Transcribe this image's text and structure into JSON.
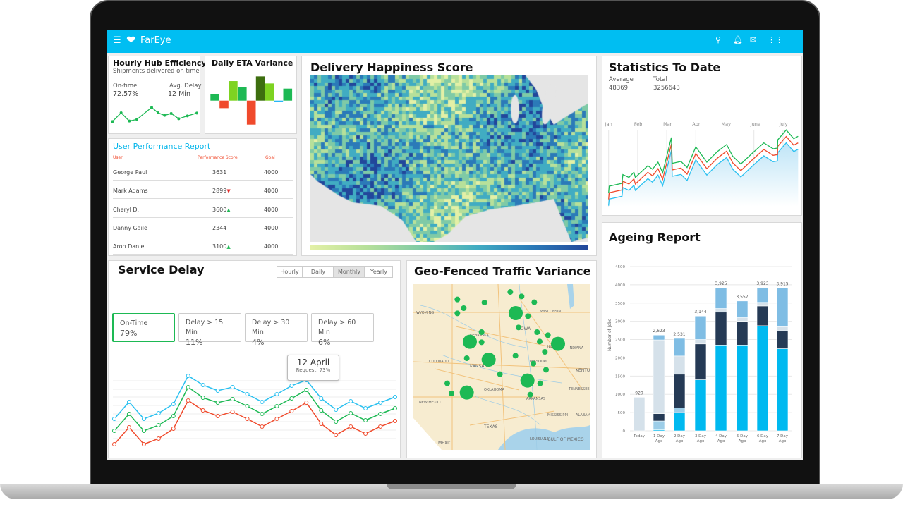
{
  "app": {
    "brand": "FarEye",
    "icons": [
      "menu-icon",
      "search-icon",
      "bell-icon",
      "mail-icon",
      "apps-grid-icon"
    ],
    "accent": "#00bef2"
  },
  "hub": {
    "title": "Hourly Hub Efficiency",
    "subtitle": "Shipments delivered on time",
    "ontime_label": "On-time",
    "ontime_value": "72.57%",
    "delay_label": "Avg. Delay",
    "delay_value": "12 Min",
    "series": [
      8,
      45,
      10,
      17,
      68,
      45,
      34,
      42,
      20,
      32,
      44
    ],
    "color": "#1db954"
  },
  "eta": {
    "title": "Daily ETA Variance",
    "bars": [
      {
        "v": 29,
        "c": "#1db954"
      },
      {
        "v": -32,
        "c": "#f04a2c"
      },
      {
        "v": 83,
        "c": "#7ed321"
      },
      {
        "v": 58,
        "c": "#1db954"
      },
      {
        "v": -102,
        "c": "#f04a2c"
      },
      {
        "v": 103,
        "c": "#3d6e0f"
      },
      {
        "v": 73,
        "c": "#7ed321"
      },
      {
        "v": -5,
        "c": "#29b6f6"
      },
      {
        "v": 51,
        "c": "#1db954"
      }
    ]
  },
  "users": {
    "title": "User Performance Report",
    "headers": [
      "User",
      "Performance Score",
      "Goal"
    ],
    "rows": [
      {
        "user": "George Paul",
        "score": "3631",
        "trend": "",
        "goal": "4000"
      },
      {
        "user": "Mark Adams",
        "score": "2899",
        "trend": "down",
        "goal": "4000"
      },
      {
        "user": "Cheryl D.",
        "score": "3600",
        "trend": "up",
        "goal": "4000"
      },
      {
        "user": "Danny Gaile",
        "score": "2344",
        "trend": "",
        "goal": "4000"
      },
      {
        "user": "Aron Daniel",
        "score": "3100",
        "trend": "up",
        "goal": "4000"
      }
    ]
  },
  "happiness": {
    "title": "Delivery Happiness Score",
    "palette": [
      "#e3f0a6",
      "#b7e09a",
      "#7fcaa6",
      "#41acc2",
      "#2b7ab8",
      "#22479b"
    ]
  },
  "stats": {
    "title": "Statistics To Date",
    "avg_label": "Average",
    "avg_value": "48369",
    "total_label": "Total",
    "total_value": "3256643",
    "chart_data": {
      "type": "line",
      "months": [
        "Jan",
        "Feb",
        "Mar",
        "Apr",
        "May",
        "June",
        "July"
      ],
      "x": [
        0,
        0.02,
        0.46,
        0.49,
        0.7,
        0.87,
        0.92,
        1.35,
        1.51,
        1.7,
        1.86,
        2.16,
        2.19,
        2.49,
        2.7,
        3.0,
        3.38,
        3.74,
        4.06,
        4.27,
        4.55,
        4.96,
        5.34,
        5.66,
        5.81,
        5.82,
        6.11,
        6.37,
        6.52
      ],
      "series": [
        {
          "color": "#29c0f0",
          "values": [
            5,
            33,
            45,
            82,
            70,
            92,
            70,
            120,
            105,
            135,
            90,
            240,
            130,
            138,
            112,
            200,
            135,
            180,
            210,
            160,
            127,
            175,
            217,
            192,
            195,
            230,
            272,
            235,
            245
          ]
        },
        {
          "color": "#f04a2c",
          "values": [
            32,
            60,
            72,
            109,
            97,
            119,
            97,
            147,
            132,
            162,
            117,
            267,
            157,
            165,
            139,
            227,
            162,
            207,
            237,
            187,
            154,
            202,
            244,
            219,
            222,
            257,
            299,
            262,
            272
          ]
        },
        {
          "color": "#1db954",
          "values": [
            58,
            88,
            100,
            137,
            125,
            147,
            125,
            175,
            160,
            190,
            145,
            295,
            185,
            193,
            167,
            255,
            190,
            235,
            265,
            215,
            182,
            230,
            272,
            247,
            250,
            285,
            327,
            290,
            300
          ]
        }
      ]
    }
  },
  "ageing": {
    "title": "Ageing Report",
    "chart_data": {
      "type": "bar",
      "stacked": true,
      "ylabel": "Number of Jobs",
      "ylim": [
        0,
        4500
      ],
      "yticks": [
        0,
        500,
        1000,
        1500,
        2000,
        2500,
        3000,
        3500,
        4000,
        4500
      ],
      "categories": [
        [
          "Today",
          ""
        ],
        [
          "1 Day",
          "Ago"
        ],
        [
          "2 Day",
          "Ago"
        ],
        [
          "3 Day",
          "Ago"
        ],
        [
          "4 Day",
          "Ago"
        ],
        [
          "5 Day",
          "Ago"
        ],
        [
          "6 Day",
          "Ago"
        ],
        [
          "7 Day",
          "Ago"
        ]
      ],
      "totals": [
        "920",
        "2,623",
        "2,531",
        "3,144",
        "3,925",
        "3,557",
        "3,923",
        "3,915"
      ],
      "colors": {
        "cyan": "#00b9f0",
        "navy": "#253a55",
        "grey": "#d5e1ea",
        "blue": "#7fbde4",
        "pale": "#9ccde8"
      },
      "stacks": [
        [
          [
            "grey",
            920
          ]
        ],
        [
          [
            "cyan",
            30
          ],
          [
            "pale",
            240
          ],
          [
            "navy",
            200
          ],
          [
            "grey",
            2020
          ],
          [
            "blue",
            133
          ]
        ],
        [
          [
            "cyan",
            500
          ],
          [
            "pale",
            130
          ],
          [
            "navy",
            920
          ],
          [
            "grey",
            500
          ],
          [
            "blue",
            481
          ]
        ],
        [
          [
            "cyan",
            1400
          ],
          [
            "navy",
            980
          ],
          [
            "grey",
            120
          ],
          [
            "blue",
            644
          ]
        ],
        [
          [
            "cyan",
            2350
          ],
          [
            "navy",
            900
          ],
          [
            "grey",
            100
          ],
          [
            "blue",
            575
          ]
        ],
        [
          [
            "cyan",
            2350
          ],
          [
            "navy",
            650
          ],
          [
            "grey",
            100
          ],
          [
            "blue",
            457
          ]
        ],
        [
          [
            "cyan",
            2880
          ],
          [
            "navy",
            540
          ],
          [
            "grey",
            100
          ],
          [
            "blue",
            403
          ]
        ],
        [
          [
            "cyan",
            2250
          ],
          [
            "navy",
            490
          ],
          [
            "grey",
            110
          ],
          [
            "blue",
            1065
          ]
        ]
      ]
    }
  },
  "service": {
    "title": "Service Delay",
    "periods": [
      "Hourly",
      "Daily",
      "Monthly",
      "Yearly"
    ],
    "active_period": "Monthly",
    "kpis": [
      {
        "label": "On-Time",
        "value": "79%"
      },
      {
        "label": "Delay > 15 Min",
        "value": "11%"
      },
      {
        "label": "Delay > 30 Min",
        "value": "4%"
      },
      {
        "label": "Delay > 60 Min",
        "value": "6%"
      }
    ],
    "tooltip": {
      "title": "12 April",
      "text": "Request: 73%"
    },
    "chart_data": {
      "type": "line",
      "series": [
        {
          "color": "#29c0f0",
          "values": [
            38,
            62,
            38,
            46,
            59,
            99,
            86,
            78,
            83,
            73,
            62,
            73,
            85,
            93,
            67,
            51,
            63,
            53,
            61,
            69
          ]
        },
        {
          "color": "#1db954",
          "values": [
            21,
            45,
            21,
            29,
            42,
            83,
            68,
            61,
            66,
            56,
            45,
            56,
            67,
            79,
            50,
            34,
            46,
            36,
            45,
            53
          ]
        },
        {
          "color": "#f04a2c",
          "values": [
            2,
            26,
            2,
            10,
            24,
            64,
            50,
            42,
            48,
            38,
            27,
            38,
            49,
            61,
            31,
            15,
            27,
            17,
            27,
            35
          ]
        }
      ]
    }
  },
  "geo": {
    "title": "Geo-Fenced Traffic Variance",
    "labels": [
      "WYOMING",
      "NEBRASKA",
      "IOWA",
      "WISCONSIN",
      "ILLINOIS",
      "INDIANA",
      "COLORADO",
      "KANSAS",
      "MISSOURI",
      "KENTUC",
      "OKLAHOMA",
      "TENNESSEE",
      "NEW MEXICO",
      "ARKANSAS",
      "MISSISSIPPI",
      "ALABAMA",
      "TEXAS",
      "LOUISIANA",
      "MEXIC",
      "GULF OF MEXICO"
    ],
    "marker_color": "#1db954"
  }
}
